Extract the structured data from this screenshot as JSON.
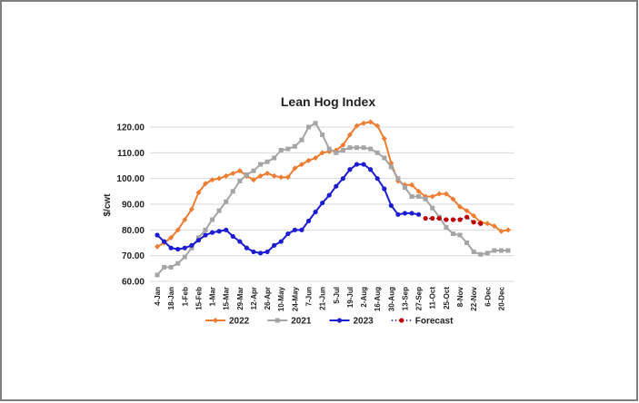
{
  "chart_data": {
    "type": "line",
    "title": "Lean Hog Index",
    "y_label": "$/cwt",
    "categories": [
      "4-Jan",
      null,
      "18-Jan",
      null,
      "1-Feb",
      null,
      "15-Feb",
      null,
      "1-Mar",
      null,
      "15-Mar",
      null,
      "29-Mar",
      null,
      "12-Apr",
      null,
      "26-Apr",
      null,
      "10-May",
      null,
      "24-May",
      null,
      "7-Jun",
      null,
      "21-Jun",
      null,
      "5-Jul",
      null,
      "19-Jul",
      null,
      "2-Aug",
      null,
      "16-Aug",
      null,
      "30-Aug",
      null,
      "13-Sep",
      null,
      "27-Sep",
      null,
      "11-Oct",
      null,
      "25-Oct",
      null,
      "8-Nov",
      null,
      "22-Nov",
      null,
      "6-Dec",
      null,
      "20-Dec",
      null
    ],
    "series": [
      {
        "name": "2022",
        "color": "#ed7d31",
        "marker": "diamond",
        "values": [
          73.5,
          75,
          77,
          80,
          84,
          88,
          94.5,
          98,
          99.5,
          100,
          101,
          102,
          103,
          101,
          99.5,
          101,
          102,
          101,
          100.5,
          100.5,
          104,
          105.5,
          107,
          108,
          110,
          110.5,
          111,
          113,
          117,
          120.5,
          121.5,
          122,
          120.5,
          115.5,
          106,
          99,
          97.5,
          97.5,
          95,
          93,
          93,
          94,
          94,
          92,
          89,
          87.5,
          85.5,
          83,
          82.5,
          81.5,
          79.5,
          80
        ]
      },
      {
        "name": "2021",
        "color": "#a5a5a5",
        "marker": "square",
        "values": [
          62.5,
          65.5,
          65.5,
          67,
          69.5,
          73,
          77,
          80,
          84,
          87.5,
          91,
          95,
          99,
          101.5,
          103,
          105.5,
          106.5,
          108,
          111,
          111.5,
          112.5,
          115,
          120,
          121.5,
          117,
          111.5,
          110,
          111,
          112,
          112,
          112,
          111.5,
          110,
          108,
          104.5,
          100,
          96.5,
          93,
          93,
          92,
          88.5,
          85,
          81,
          78.5,
          78,
          75,
          71.5,
          70.5,
          71,
          72,
          72,
          72
        ]
      },
      {
        "name": "2023",
        "color": "#1c1cd0",
        "marker": "circle",
        "values": [
          78,
          75.5,
          73,
          72.5,
          73,
          74,
          76,
          78,
          79,
          79.5,
          80,
          77.5,
          75.5,
          73,
          71.5,
          71,
          71.5,
          74,
          75.5,
          78.5,
          80,
          80,
          83.5,
          87,
          90.5,
          93.5,
          97,
          100,
          103.5,
          105.5,
          105.5,
          103.5,
          100,
          96,
          89.5,
          86,
          86.5,
          86.5,
          86,
          null,
          null,
          null,
          null,
          null,
          null,
          null,
          null,
          null,
          null,
          null,
          null,
          null
        ]
      },
      {
        "name": "Forecast",
        "color": "#c00000",
        "line_color": "#1f1f5f",
        "dashed": true,
        "marker": "circle",
        "values": [
          null,
          null,
          null,
          null,
          null,
          null,
          null,
          null,
          null,
          null,
          null,
          null,
          null,
          null,
          null,
          null,
          null,
          null,
          null,
          null,
          null,
          null,
          null,
          null,
          null,
          null,
          null,
          null,
          null,
          null,
          null,
          null,
          null,
          null,
          null,
          null,
          null,
          null,
          null,
          84.5,
          84.5,
          84.5,
          84,
          84,
          84,
          85,
          83,
          82.5,
          null,
          null,
          null,
          null
        ]
      }
    ],
    "ylim": [
      60,
      120
    ],
    "yticks": [
      {
        "value": 60,
        "label": "60.00"
      },
      {
        "value": 70,
        "label": "70.00"
      },
      {
        "value": 80,
        "label": "80.00"
      },
      {
        "value": 90,
        "label": "90.00"
      },
      {
        "value": 100,
        "label": "100.00"
      },
      {
        "value": 110,
        "label": "110.00"
      },
      {
        "value": 120,
        "label": "120.00"
      }
    ],
    "grid": true,
    "legend": "bottom"
  }
}
